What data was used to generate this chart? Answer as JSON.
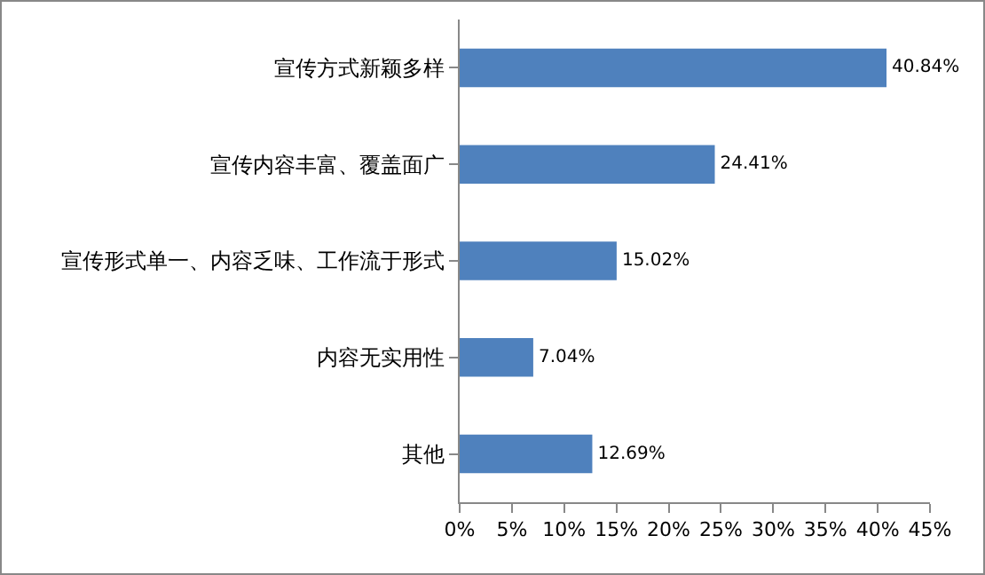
{
  "chart_data": {
    "type": "bar",
    "orientation": "horizontal",
    "categories": [
      "宣传方式新颖多样",
      "宣传内容丰富、覆盖面广",
      "宣传形式单一、内容乏味、工作流于形式",
      "内容无实用性",
      "其他"
    ],
    "values": [
      40.84,
      24.41,
      15.02,
      7.04,
      12.69
    ],
    "value_labels": [
      "40.84%",
      "24.41%",
      "15.02%",
      "7.04%",
      "12.69%"
    ],
    "color": "#4f81bd",
    "xlim": [
      0,
      45
    ],
    "xticks": [
      {
        "value": 0,
        "label": "0%"
      },
      {
        "value": 5,
        "label": "5%"
      },
      {
        "value": 10,
        "label": "10%"
      },
      {
        "value": 15,
        "label": "15%"
      },
      {
        "value": 20,
        "label": "20%"
      },
      {
        "value": 25,
        "label": "25%"
      },
      {
        "value": 30,
        "label": "30%"
      },
      {
        "value": 35,
        "label": "35%"
      },
      {
        "value": 40,
        "label": "40%"
      },
      {
        "value": 45,
        "label": "45%"
      }
    ],
    "grid": false,
    "legend": false
  }
}
